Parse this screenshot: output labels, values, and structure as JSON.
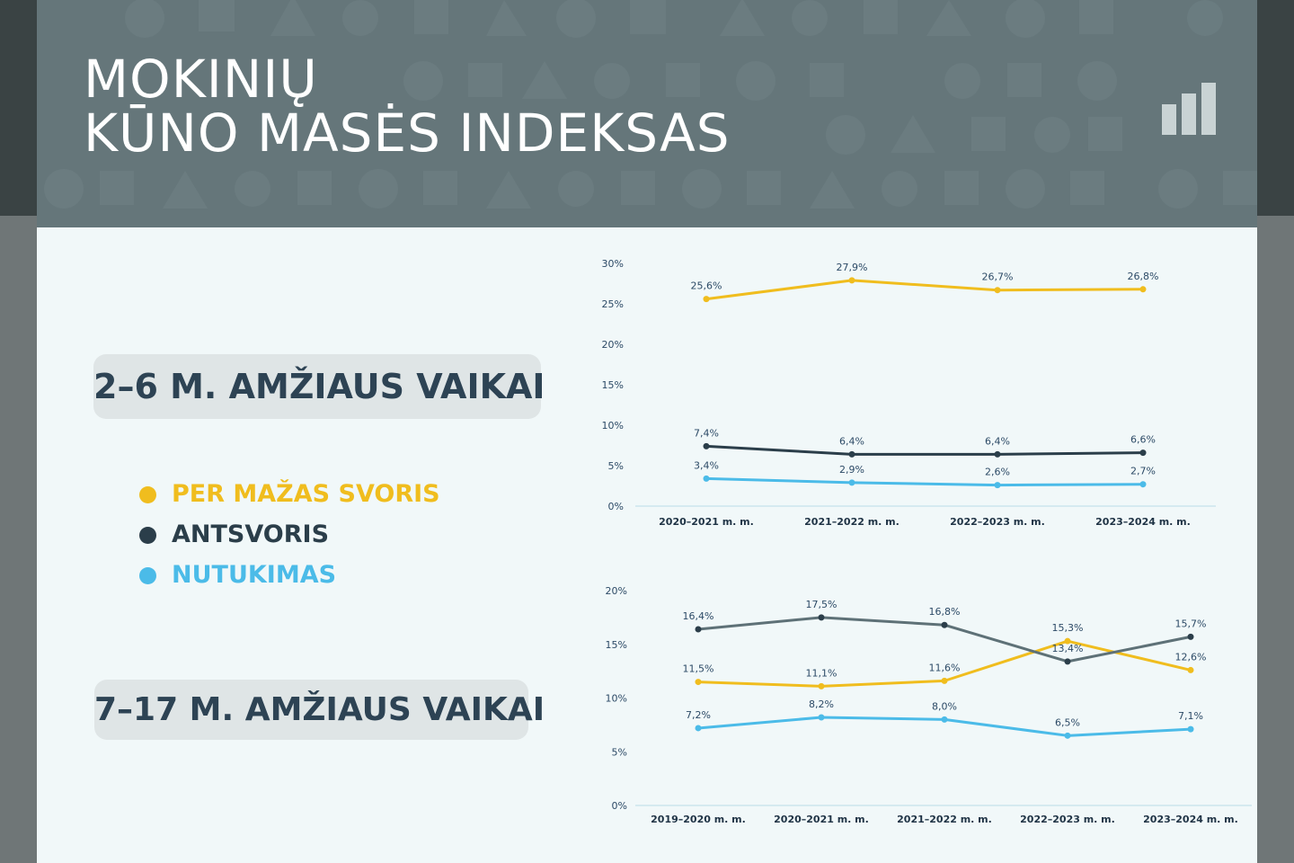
{
  "header": {
    "title_line1": "MOKINIŲ",
    "title_line2": "KŪNO MASĖS INDEKSAS",
    "icon": "bar-chart-icon"
  },
  "groups": {
    "young_label": "2–6 M. AMŽIAUS VAIKAI",
    "older_label": "7–17 M. AMŽIAUS VAIKAI"
  },
  "legend": [
    {
      "label": "PER MAŽAS SVORIS",
      "color": "#f0bd1e"
    },
    {
      "label": "ANTSVORIS",
      "color": "#2b3e4a"
    },
    {
      "label": "NUTUKIMAS",
      "color": "#4bbbe8"
    }
  ],
  "chart_data": [
    {
      "type": "line",
      "categories": [
        "2020–2021 m. m.",
        "2021–2022 m. m.",
        "2022–2023 m. m.",
        "2023–2024 m. m."
      ],
      "ylim": [
        0,
        30
      ],
      "yticks": [
        "0%",
        "5%",
        "10%",
        "15%",
        "20%",
        "25%",
        "30%"
      ],
      "series": [
        {
          "legend_index": 0,
          "values": [
            25.6,
            27.9,
            26.7,
            26.8
          ],
          "labels": [
            "25,6%",
            "27,9%",
            "26,7%",
            "26,8%"
          ],
          "color": "#f0bd1e"
        },
        {
          "legend_index": 1,
          "values": [
            7.4,
            6.4,
            6.4,
            6.6
          ],
          "labels": [
            "7,4%",
            "6,4%",
            "6,4%",
            "6,6%"
          ],
          "color": "#2b3e4a"
        },
        {
          "legend_index": 2,
          "values": [
            3.4,
            2.9,
            2.6,
            2.7
          ],
          "labels": [
            "3,4%",
            "2,9%",
            "2,6%",
            "2,7%"
          ],
          "color": "#4bbbe8"
        }
      ]
    },
    {
      "type": "line",
      "categories": [
        "2019–2020 m. m.",
        "2020–2021 m. m.",
        "2021–2022 m. m.",
        "2022–2023 m. m.",
        "2023–2024 m. m."
      ],
      "ylim": [
        0,
        20
      ],
      "yticks": [
        "0%",
        "5%",
        "10%",
        "15%",
        "20%"
      ],
      "series": [
        {
          "legend_index": 0,
          "values": [
            11.5,
            11.1,
            11.6,
            15.3,
            12.6
          ],
          "labels": [
            "11,5%",
            "11,1%",
            "11,6%",
            "15,3%",
            "12,6%"
          ],
          "color": "#f0bd1e"
        },
        {
          "legend_index": 1,
          "values": [
            16.4,
            17.5,
            16.8,
            13.4,
            15.7
          ],
          "labels": [
            "16,4%",
            "17,5%",
            "16,8%",
            "13,4%",
            "15,7%"
          ],
          "color": "#2b3e4a"
        },
        {
          "legend_index": 2,
          "values": [
            7.2,
            8.2,
            8.0,
            6.5,
            7.1
          ],
          "labels": [
            "7,2%",
            "8,2%",
            "8,0%",
            "6,5%",
            "7,1%"
          ],
          "color": "#4bbbe8"
        }
      ]
    }
  ]
}
